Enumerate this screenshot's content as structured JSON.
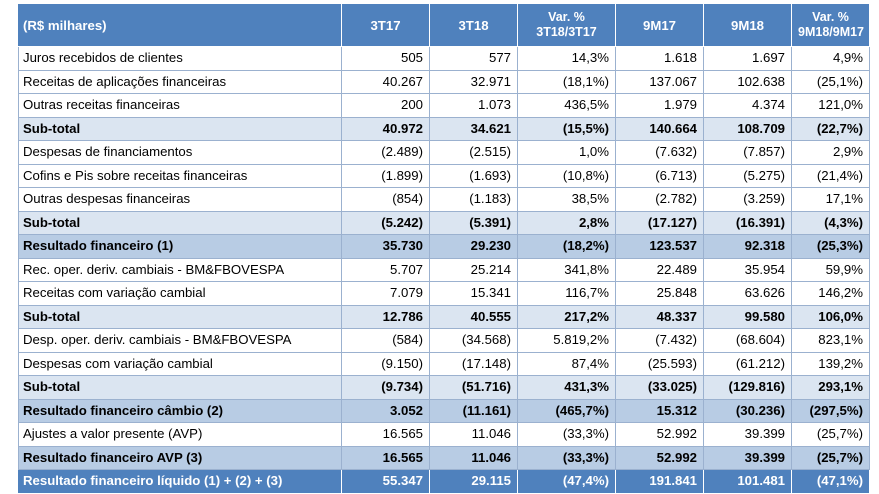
{
  "header": [
    "(R$ milhares)",
    "3T17",
    "3T18",
    "Var. %\n3T18/3T17",
    "9M17",
    "9M18",
    "Var. %\n9M18/9M17"
  ],
  "rows": [
    {
      "type": "normal",
      "cells": [
        "Juros recebidos de clientes",
        "505",
        "577",
        "14,3%",
        "1.618",
        "1.697",
        "4,9%"
      ]
    },
    {
      "type": "normal",
      "cells": [
        "Receitas de aplicações financeiras",
        "40.267",
        "32.971",
        "(18,1%)",
        "137.067",
        "102.638",
        "(25,1%)"
      ]
    },
    {
      "type": "normal",
      "cells": [
        "Outras receitas financeiras",
        "200",
        "1.073",
        "436,5%",
        "1.979",
        "4.374",
        "121,0%"
      ]
    },
    {
      "type": "subtotal",
      "cells": [
        "Sub-total",
        "40.972",
        "34.621",
        "(15,5%)",
        "140.664",
        "108.709",
        "(22,7%)"
      ]
    },
    {
      "type": "normal",
      "cells": [
        "Despesas de financiamentos",
        "(2.489)",
        "(2.515)",
        "1,0%",
        "(7.632)",
        "(7.857)",
        "2,9%"
      ]
    },
    {
      "type": "normal",
      "cells": [
        "Cofins e Pis sobre receitas financeiras",
        "(1.899)",
        "(1.693)",
        "(10,8%)",
        "(6.713)",
        "(5.275)",
        "(21,4%)"
      ]
    },
    {
      "type": "normal",
      "cells": [
        "Outras despesas financeiras",
        "(854)",
        "(1.183)",
        "38,5%",
        "(2.782)",
        "(3.259)",
        "17,1%"
      ]
    },
    {
      "type": "subtotal",
      "cells": [
        "Sub-total",
        "(5.242)",
        "(5.391)",
        "2,8%",
        "(17.127)",
        "(16.391)",
        "(4,3%)"
      ]
    },
    {
      "type": "result",
      "cells": [
        "Resultado financeiro (1)",
        "35.730",
        "29.230",
        "(18,2%)",
        "123.537",
        "92.318",
        "(25,3%)"
      ]
    },
    {
      "type": "normal",
      "cells": [
        "Rec. oper. deriv. cambiais - BM&FBOVESPA",
        "5.707",
        "25.214",
        "341,8%",
        "22.489",
        "35.954",
        "59,9%"
      ]
    },
    {
      "type": "normal",
      "cells": [
        "Receitas com variação cambial",
        "7.079",
        "15.341",
        "116,7%",
        "25.848",
        "63.626",
        "146,2%"
      ]
    },
    {
      "type": "subtotal",
      "cells": [
        "Sub-total",
        "12.786",
        "40.555",
        "217,2%",
        "48.337",
        "99.580",
        "106,0%"
      ]
    },
    {
      "type": "normal",
      "cells": [
        "Desp. oper. deriv. cambiais - BM&FBOVESPA",
        "(584)",
        "(34.568)",
        "5.819,2%",
        "(7.432)",
        "(68.604)",
        "823,1%"
      ]
    },
    {
      "type": "normal",
      "cells": [
        "Despesas com variação cambial",
        "(9.150)",
        "(17.148)",
        "87,4%",
        "(25.593)",
        "(61.212)",
        "139,2%"
      ]
    },
    {
      "type": "subtotal",
      "cells": [
        "Sub-total",
        "(9.734)",
        "(51.716)",
        "431,3%",
        "(33.025)",
        "(129.816)",
        "293,1%"
      ]
    },
    {
      "type": "result",
      "cells": [
        "Resultado financeiro câmbio (2)",
        "3.052",
        "(11.161)",
        "(465,7%)",
        "15.312",
        "(30.236)",
        "(297,5%)"
      ]
    },
    {
      "type": "normal",
      "cells": [
        "Ajustes a valor presente (AVP)",
        "16.565",
        "11.046",
        "(33,3%)",
        "52.992",
        "39.399",
        "(25,7%)"
      ]
    },
    {
      "type": "result",
      "cells": [
        "Resultado financeiro AVP (3)",
        "16.565",
        "11.046",
        "(33,3%)",
        "52.992",
        "39.399",
        "(25,7%)"
      ]
    },
    {
      "type": "total",
      "cells": [
        "Resultado financeiro líquido (1) + (2) + (3)",
        "55.347",
        "29.115",
        "(47,4%)",
        "191.841",
        "101.481",
        "(47,1%)"
      ]
    }
  ],
  "colors": {
    "header_bg": "#4f81bd",
    "subtotal_bg": "#dbe5f1",
    "result_bg": "#b8cce4",
    "grid": "#9bb1cf"
  }
}
